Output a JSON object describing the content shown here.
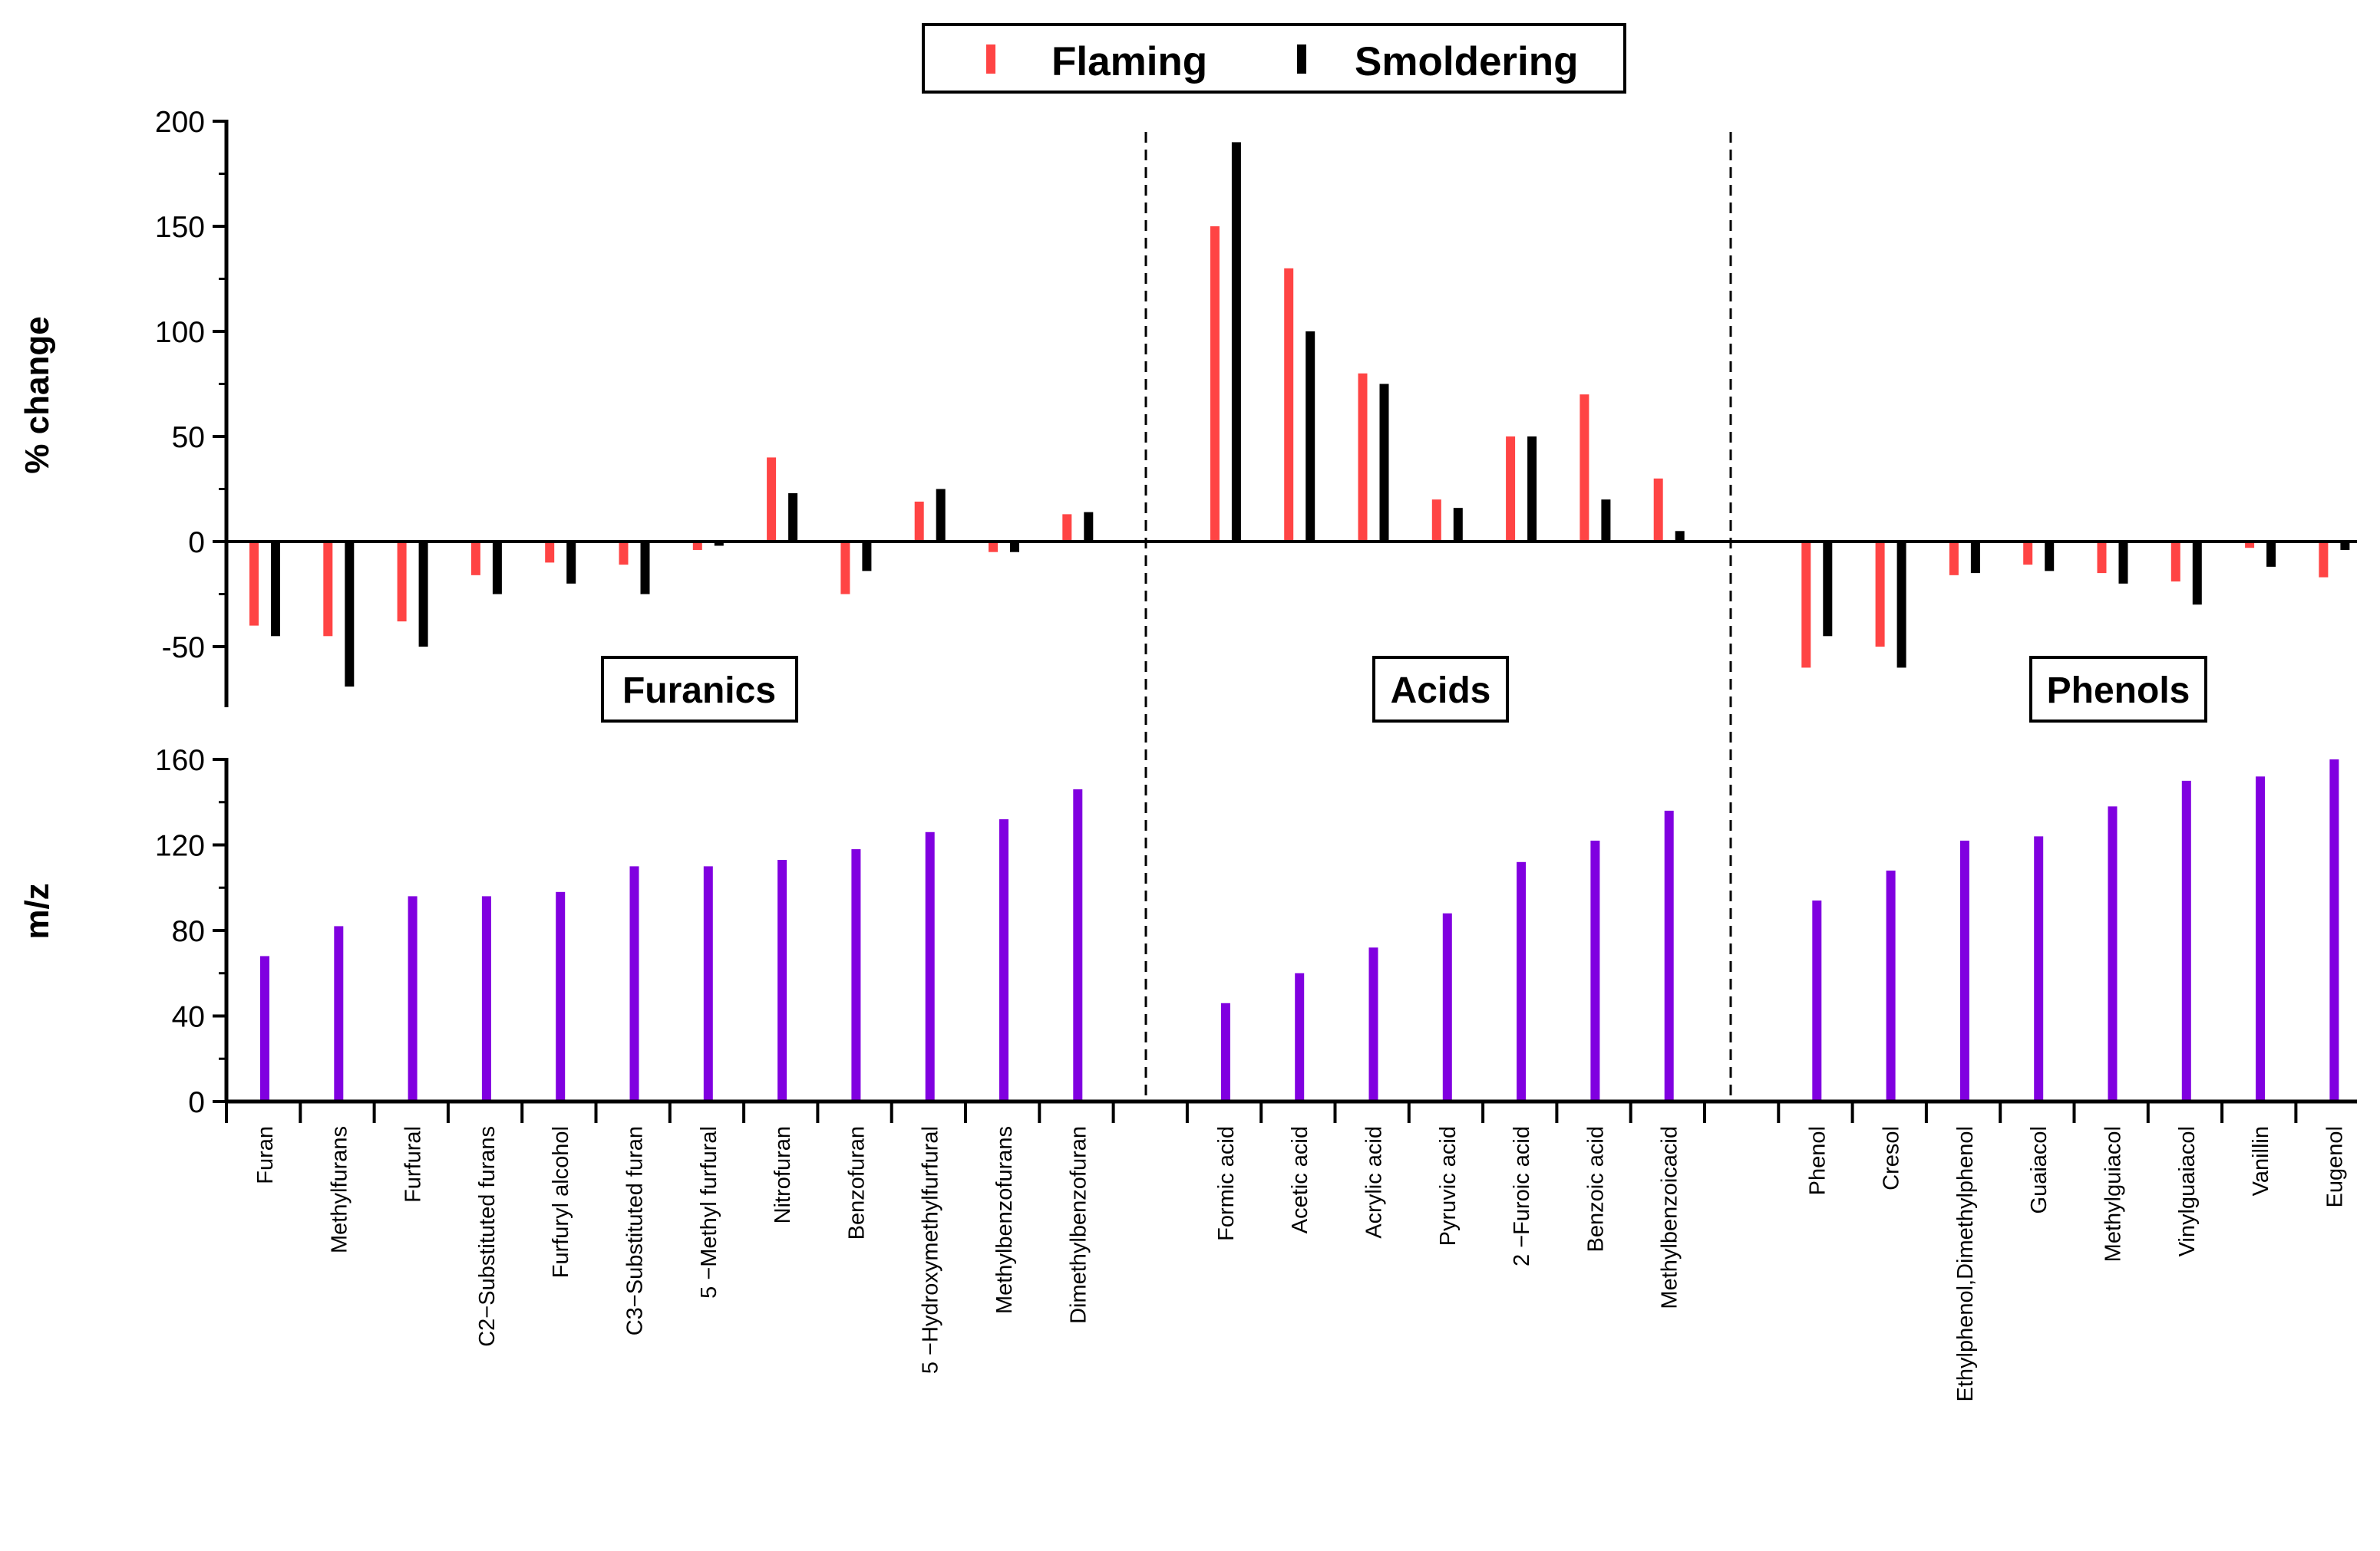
{
  "chart_data": {
    "type": "bar",
    "legend": {
      "position": "top-center",
      "entries": [
        "Flaming",
        "Smoldering"
      ]
    },
    "colors": {
      "flaming": "#ff4444",
      "smoldering": "#000000",
      "mz": "#8000e0",
      "axis": "#000000"
    },
    "categories": [
      "Furan",
      "Methylfurans",
      "Furfural",
      "C2−Substituted furans",
      "Furfuryl alcohol",
      "C3−Substituted furan",
      "5 −Methyl furfural",
      "Nitrofuran",
      "Benzofuran",
      "5 −Hydroxymethylfurfural",
      "Methylbenzofurans",
      "Dimethylbenzofuran",
      "",
      "Formic acid",
      "Acetic acid",
      "Acrylic acid",
      "Pyruvic acid",
      "2 −Furoic acid",
      "Benzoic acid",
      "Methylbenzoicacid",
      "",
      "Phenol",
      "Cresol",
      "Ethylphenol,Dimethylphenol",
      "Guaiacol",
      "Methylguiacol",
      "Vinylguaiacol",
      "Vanillin",
      "Eugenol"
    ],
    "groups": [
      {
        "label": "Furanics",
        "from": 0,
        "to": 11
      },
      {
        "label": "Acids",
        "from": 13,
        "to": 19
      },
      {
        "label": "Phenols",
        "from": 21,
        "to": 28
      }
    ],
    "top_panel": {
      "ylabel": "% change",
      "ylim": [
        -78,
        200
      ],
      "yticks": [
        -50,
        0,
        50,
        100,
        150,
        200
      ],
      "series": [
        {
          "name": "Flaming",
          "values": [
            -40,
            -45,
            -38,
            -16,
            -10,
            -11,
            -4,
            40,
            -25,
            19,
            -5,
            13,
            null,
            150,
            130,
            80,
            20,
            50,
            70,
            30,
            null,
            -60,
            -50,
            -16,
            -11,
            -15,
            -19,
            -3,
            -17
          ]
        },
        {
          "name": "Smoldering",
          "values": [
            -45,
            -69,
            -50,
            -25,
            -20,
            -25,
            -2,
            23,
            -14,
            25,
            -5,
            14,
            null,
            190,
            100,
            75,
            16,
            50,
            20,
            5,
            null,
            -45,
            -60,
            -15,
            -14,
            -20,
            -30,
            -12,
            -4
          ]
        }
      ]
    },
    "bottom_panel": {
      "ylabel": "m/z",
      "ylim": [
        0,
        160
      ],
      "yticks": [
        0,
        40,
        80,
        120,
        160
      ],
      "series": [
        {
          "name": "m/z",
          "values": [
            68,
            82,
            96,
            96,
            98,
            110,
            110,
            113,
            118,
            126,
            132,
            146,
            null,
            46,
            60,
            72,
            88,
            112,
            122,
            136,
            null,
            94,
            108,
            122,
            124,
            138,
            150,
            152,
            160
          ]
        }
      ]
    }
  }
}
